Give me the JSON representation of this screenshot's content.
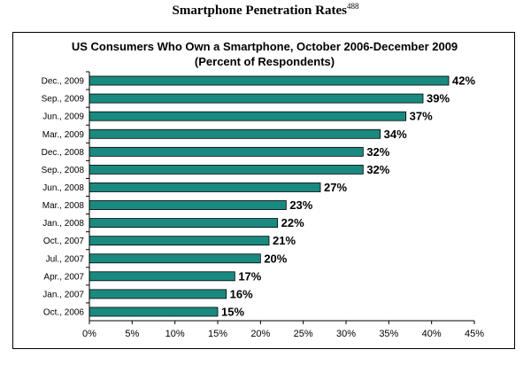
{
  "heading": {
    "text": "Smartphone Penetration Rates",
    "footnote": "488"
  },
  "colors": {
    "bar_fill": "#1a8a80",
    "bar_stroke": "#000000",
    "axis": "#000000"
  },
  "chart_data": {
    "type": "bar",
    "orientation": "horizontal",
    "title": "US Consumers Who Own a Smartphone, October 2006-December 2009",
    "subtitle": "(Percent of Respondents)",
    "xlabel": "",
    "ylabel": "",
    "categories": [
      "Dec., 2009",
      "Sep., 2009",
      "Jun., 2009",
      "Mar., 2009",
      "Dec., 2008",
      "Sep., 2008",
      "Jun., 2008",
      "Mar., 2008",
      "Jan., 2008",
      "Oct., 2007",
      "Jul., 2007",
      "Apr., 2007",
      "Jan., 2007",
      "Oct., 2006"
    ],
    "values": [
      42,
      39,
      37,
      34,
      32,
      32,
      27,
      23,
      22,
      21,
      20,
      17,
      16,
      15
    ],
    "data_labels": [
      "42%",
      "39%",
      "37%",
      "34%",
      "32%",
      "32%",
      "27%",
      "23%",
      "22%",
      "21%",
      "20%",
      "17%",
      "16%",
      "15%"
    ],
    "xlim": [
      0,
      45
    ],
    "x_ticks": [
      0,
      5,
      10,
      15,
      20,
      25,
      30,
      35,
      40,
      45
    ],
    "x_tick_labels": [
      "0%",
      "5%",
      "10%",
      "15%",
      "20%",
      "25%",
      "30%",
      "35%",
      "40%",
      "45%"
    ],
    "grid": false,
    "legend": "none"
  }
}
